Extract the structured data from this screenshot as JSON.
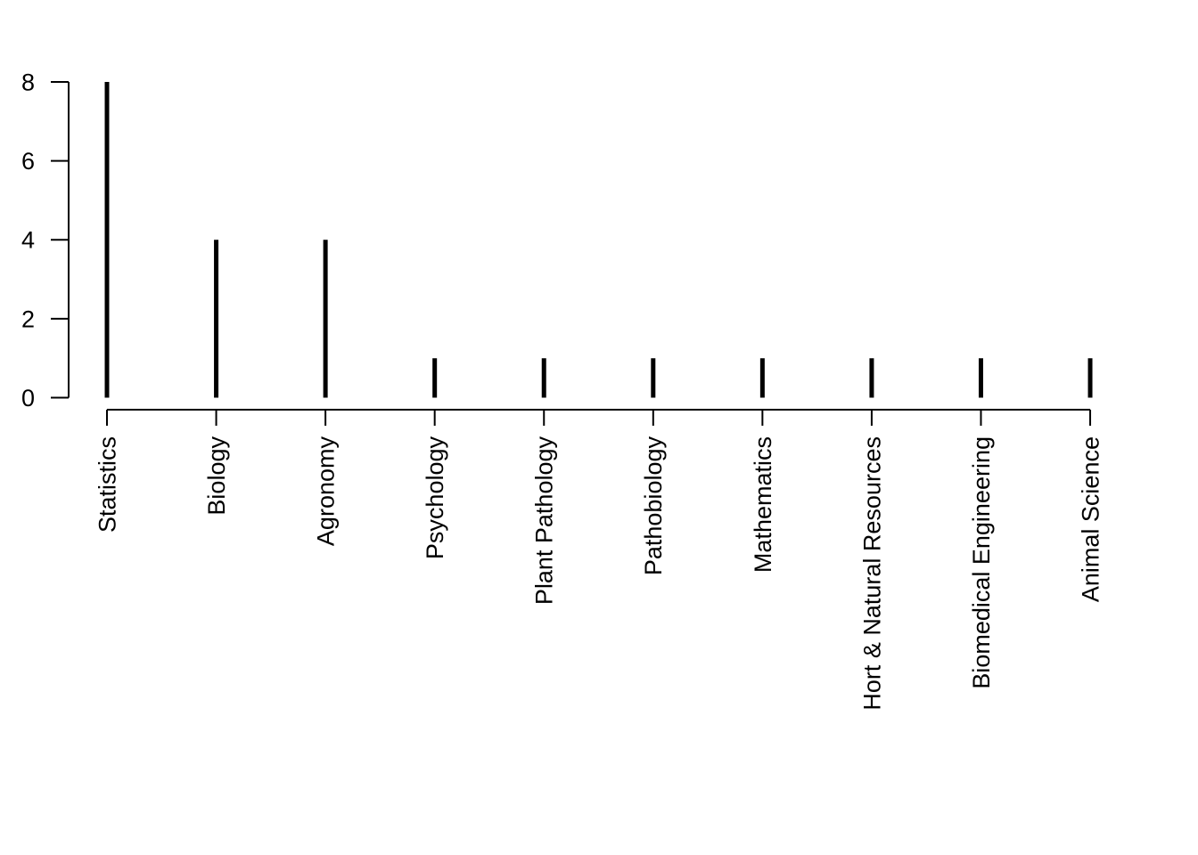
{
  "page": {
    "background_color": "#ffffff"
  },
  "chart_data": {
    "type": "bar",
    "style": "spike-needle-plot",
    "title": "",
    "xlabel": "",
    "ylabel": "",
    "categories": [
      "Statistics",
      "Biology",
      "Agronomy",
      "Psychology",
      "Plant Pathology",
      "Pathobiology",
      "Mathematics",
      "Hort & Natural Resources",
      "Biomedical Engineering",
      "Animal Science"
    ],
    "values": [
      8,
      4,
      4,
      1,
      1,
      1,
      1,
      1,
      1,
      1
    ],
    "ylim": [
      0,
      8
    ],
    "yticks": [
      0,
      2,
      4,
      6,
      8
    ],
    "ytick_labels": [
      "0",
      "2",
      "4",
      "6",
      "8"
    ],
    "x_labels_rotated_degrees": 90,
    "grid": false,
    "legend_position": "none",
    "colors": {
      "spike": "#000000",
      "axis": "#000000",
      "text": "#000000",
      "background": "#ffffff"
    }
  }
}
